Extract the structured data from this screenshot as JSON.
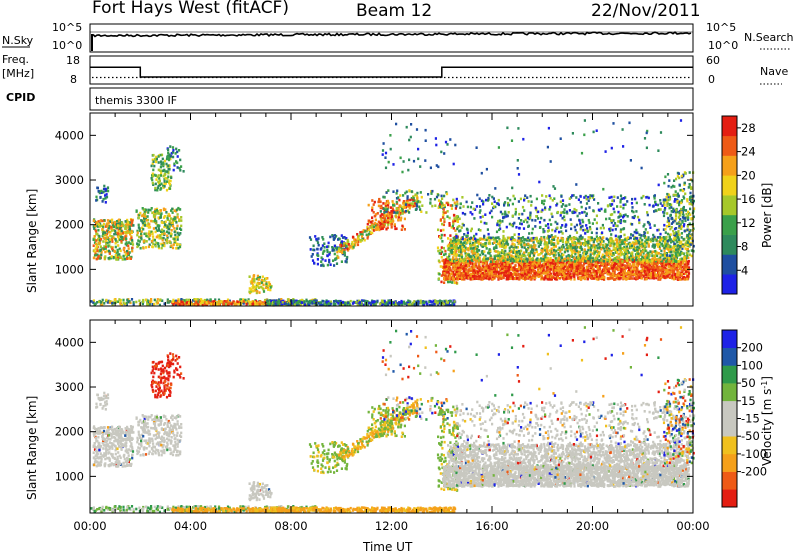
{
  "header": {
    "station": "Fort Hays West (fitACF)",
    "beam": "Beam 12",
    "date": "22/Nov/2011"
  },
  "status_panels": {
    "nsky_label": "N.Sky",
    "nsearch_label": "N.Search",
    "noise_ticks": [
      "10^5",
      "10^0"
    ],
    "freq_label_1": "Freq.",
    "freq_label_2": "[MHz]",
    "freq_ticks": [
      "18",
      "8"
    ],
    "nave_label": "Nave",
    "nave_ticks": [
      "60",
      "0"
    ],
    "cpid_label": "CPID",
    "cpid_value": "themis 3300 IF",
    "freq_trace": [
      {
        "t": 0.0,
        "mhz": 14
      },
      {
        "t": 2.0,
        "mhz": 14
      },
      {
        "t": 2.0,
        "mhz": 10.5
      },
      {
        "t": 14.0,
        "mhz": 10.5
      },
      {
        "t": 14.0,
        "mhz": 14
      },
      {
        "t": 24.0,
        "mhz": 14
      }
    ],
    "nave_level": 14
  },
  "colors": {
    "power_scale": [
      "#1e22e6",
      "#1f4fa0",
      "#2e8a5c",
      "#3aa04a",
      "#a6c82a",
      "#f0d21a",
      "#f5a01a",
      "#ee5a16",
      "#e41e12"
    ],
    "velocity_scale": [
      "#e41e12",
      "#ee5a16",
      "#f5a01a",
      "#f0c01e",
      "#c8c8c0",
      "#c8c8c0",
      "#72b43c",
      "#2f9a4a",
      "#1f58a8",
      "#1e22e6"
    ],
    "ground_scatter": "#c8c8c0"
  },
  "chart_data": [
    {
      "type": "heatmap",
      "name": "power",
      "ylabel": "Slant Range [km]",
      "xlim_hours": [
        0,
        24
      ],
      "ylim_km": [
        180,
        4500
      ],
      "yticks": [
        1000,
        2000,
        3000,
        4000
      ],
      "colorbar_label": "Power [dB]",
      "colorbar_ticks": [
        4,
        8,
        12,
        16,
        20,
        24,
        28
      ],
      "colorbar_range": [
        0,
        30
      ]
    },
    {
      "type": "heatmap",
      "name": "velocity",
      "ylabel": "Slant Range [km]",
      "xlabel": "Time UT",
      "xlim_hours": [
        0,
        24
      ],
      "ylim_km": [
        180,
        4500
      ],
      "yticks": [
        1000,
        2000,
        3000,
        4000
      ],
      "xticks": [
        "00:00",
        "04:00",
        "08:00",
        "12:00",
        "16:00",
        "20:00",
        "00:00"
      ],
      "colorbar_label": "Velocity [m s",
      "colorbar_label_sup": "-1",
      "colorbar_label_end": "]",
      "colorbar_ticks": [
        200,
        100,
        50,
        15,
        -15,
        -50,
        -100,
        -200
      ]
    }
  ]
}
